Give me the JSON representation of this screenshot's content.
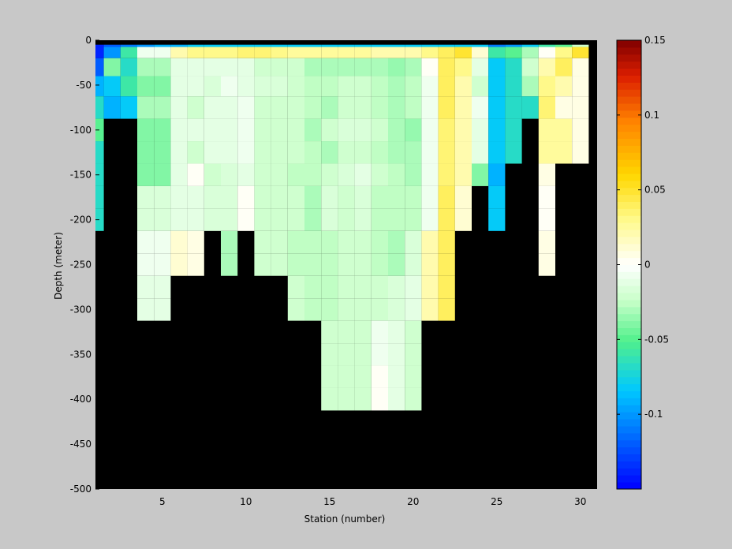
{
  "chart_data": {
    "type": "heatmap",
    "title": "",
    "xlabel": "Station (number)",
    "ylabel": "Depth (meter)",
    "xlim": [
      1,
      31
    ],
    "ylim": [
      -500,
      0
    ],
    "x_ticks": [
      5,
      10,
      15,
      20,
      25,
      30
    ],
    "y_ticks": [
      0,
      -50,
      -100,
      -150,
      -200,
      -250,
      -300,
      -350,
      -400,
      -450,
      -500
    ],
    "colorbar": {
      "colormap": "jet-like blue-cyan-green-white-yellow-red",
      "range": [
        -0.15,
        0.15
      ],
      "ticks": [
        0.15,
        0.1,
        0.05,
        0,
        -0.05,
        -0.1
      ],
      "tick_labels": [
        "0.15",
        "0.1",
        "0.05",
        "0",
        "-0.05",
        "-0.1"
      ],
      "low_color": "#0000ff",
      "high_color": "#800000"
    },
    "no_data_color": "#000000",
    "stations": [
      1,
      2,
      3,
      4,
      5,
      6,
      7,
      8,
      9,
      10,
      11,
      12,
      13,
      14,
      15,
      16,
      17,
      18,
      19,
      20,
      21,
      22,
      23,
      24,
      25,
      26,
      27,
      28,
      29,
      30
    ],
    "depth_bins": [
      -5,
      -10,
      -30,
      -50,
      -75,
      -100,
      -125,
      -150,
      -175,
      -200,
      -225,
      -250,
      -275,
      -300,
      -325,
      -350,
      -375,
      -400
    ],
    "values_by_depth": [
      [
        -0.14,
        -0.12,
        -0.11,
        -0.1,
        -0.09,
        -0.09,
        -0.08,
        -0.08,
        -0.08,
        -0.08,
        -0.08,
        -0.08,
        -0.08,
        -0.08,
        -0.08,
        -0.08,
        -0.08,
        -0.08,
        -0.08,
        -0.08,
        -0.08,
        -0.08,
        -0.08,
        -0.08,
        -0.11,
        -0.1,
        -0.08,
        -0.06,
        -0.05,
        -0.02
      ],
      [
        -0.14,
        -0.1,
        -0.06,
        -0.005,
        -0.005,
        0.02,
        0.03,
        0.03,
        0.03,
        0.035,
        0.035,
        0.03,
        0.025,
        0.025,
        0.025,
        0.025,
        0.025,
        0.02,
        0.02,
        0.02,
        0.03,
        0.04,
        0.05,
        0.01,
        -0.06,
        -0.05,
        -0.03,
        0.0,
        0.03,
        0.05
      ],
      [
        -0.12,
        -0.04,
        -0.07,
        -0.03,
        -0.03,
        -0.01,
        -0.01,
        -0.01,
        -0.01,
        -0.01,
        -0.02,
        -0.02,
        -0.02,
        -0.03,
        -0.03,
        -0.03,
        -0.03,
        -0.03,
        -0.035,
        -0.03,
        0.0,
        0.04,
        0.03,
        -0.01,
        -0.08,
        -0.07,
        -0.02,
        0.02,
        0.04,
        0.005
      ],
      [
        -0.09,
        -0.08,
        -0.06,
        -0.04,
        -0.04,
        -0.01,
        -0.01,
        -0.015,
        -0.005,
        -0.01,
        -0.015,
        -0.015,
        -0.02,
        -0.025,
        -0.025,
        -0.02,
        -0.02,
        -0.025,
        -0.03,
        -0.025,
        -0.005,
        0.04,
        0.02,
        -0.02,
        -0.08,
        -0.07,
        -0.03,
        0.03,
        0.02,
        0.005
      ],
      [
        -0.07,
        -0.09,
        -0.08,
        -0.03,
        -0.03,
        -0.01,
        -0.02,
        -0.01,
        -0.01,
        -0.005,
        -0.02,
        -0.02,
        -0.02,
        -0.025,
        -0.03,
        -0.02,
        -0.02,
        -0.025,
        -0.03,
        -0.025,
        -0.005,
        0.04,
        0.02,
        -0.005,
        -0.08,
        -0.07,
        -0.07,
        0.035,
        0.005,
        0.005
      ],
      [
        -0.05,
        null,
        null,
        -0.04,
        -0.04,
        -0.01,
        -0.01,
        -0.01,
        -0.01,
        -0.005,
        -0.02,
        -0.02,
        -0.02,
        -0.03,
        -0.02,
        -0.015,
        -0.015,
        -0.02,
        -0.03,
        -0.035,
        -0.005,
        0.035,
        0.02,
        -0.01,
        -0.08,
        -0.07,
        null,
        0.025,
        0.025,
        0.005
      ],
      [
        -0.07,
        null,
        null,
        -0.04,
        -0.04,
        -0.01,
        -0.02,
        -0.01,
        -0.01,
        -0.005,
        -0.02,
        -0.02,
        -0.02,
        -0.025,
        -0.03,
        -0.02,
        -0.02,
        -0.025,
        -0.03,
        -0.03,
        -0.005,
        0.035,
        0.02,
        -0.01,
        -0.08,
        -0.07,
        null,
        0.025,
        0.025,
        0.005
      ],
      [
        -0.07,
        null,
        null,
        -0.04,
        -0.04,
        -0.01,
        0.0,
        -0.02,
        -0.015,
        -0.01,
        -0.02,
        -0.02,
        -0.025,
        -0.025,
        -0.02,
        -0.015,
        -0.01,
        -0.02,
        -0.025,
        -0.03,
        -0.005,
        0.035,
        0.02,
        -0.04,
        -0.09,
        null,
        null,
        0.005,
        null,
        null
      ],
      [
        -0.07,
        null,
        null,
        -0.015,
        -0.015,
        -0.01,
        -0.01,
        -0.015,
        -0.015,
        0.0,
        -0.02,
        -0.02,
        -0.02,
        -0.03,
        -0.015,
        -0.02,
        -0.015,
        -0.025,
        -0.025,
        -0.025,
        -0.005,
        0.04,
        0.01,
        null,
        -0.08,
        null,
        null,
        0.0,
        null,
        null
      ],
      [
        -0.07,
        null,
        null,
        -0.015,
        -0.015,
        -0.01,
        -0.01,
        -0.015,
        -0.015,
        0.0,
        -0.02,
        -0.02,
        -0.02,
        -0.03,
        -0.015,
        -0.02,
        -0.015,
        -0.025,
        -0.025,
        -0.025,
        -0.005,
        0.04,
        0.01,
        null,
        -0.08,
        null,
        null,
        0.0,
        null,
        null
      ],
      [
        null,
        null,
        null,
        -0.005,
        -0.005,
        0.01,
        0.005,
        null,
        -0.03,
        null,
        -0.02,
        -0.02,
        -0.025,
        -0.025,
        -0.025,
        -0.02,
        -0.02,
        -0.025,
        -0.03,
        -0.015,
        0.02,
        0.04,
        null,
        null,
        null,
        null,
        null,
        0.005,
        null,
        null
      ],
      [
        null,
        null,
        null,
        -0.005,
        -0.005,
        0.01,
        0.005,
        null,
        -0.03,
        null,
        -0.02,
        -0.02,
        -0.025,
        -0.025,
        -0.025,
        -0.02,
        -0.02,
        -0.025,
        -0.03,
        -0.015,
        0.02,
        0.04,
        null,
        null,
        null,
        null,
        null,
        0.005,
        null,
        null
      ],
      [
        null,
        null,
        null,
        -0.01,
        -0.01,
        null,
        null,
        null,
        null,
        null,
        null,
        null,
        -0.02,
        -0.025,
        -0.025,
        -0.02,
        -0.02,
        -0.02,
        -0.015,
        -0.01,
        0.02,
        0.04,
        null,
        null,
        null,
        null,
        null,
        null,
        null,
        null
      ],
      [
        null,
        null,
        null,
        -0.01,
        -0.01,
        null,
        null,
        null,
        null,
        null,
        null,
        null,
        -0.02,
        -0.025,
        -0.025,
        -0.02,
        -0.02,
        -0.02,
        -0.015,
        -0.01,
        0.02,
        0.04,
        null,
        null,
        null,
        null,
        null,
        null,
        null,
        null
      ],
      [
        null,
        null,
        null,
        null,
        null,
        null,
        null,
        null,
        null,
        null,
        null,
        null,
        null,
        null,
        -0.02,
        -0.02,
        -0.02,
        -0.005,
        -0.01,
        -0.02,
        null,
        null,
        null,
        null,
        null,
        null,
        null,
        null,
        null,
        null
      ],
      [
        null,
        null,
        null,
        null,
        null,
        null,
        null,
        null,
        null,
        null,
        null,
        null,
        null,
        null,
        -0.02,
        -0.02,
        -0.02,
        -0.005,
        -0.01,
        -0.02,
        null,
        null,
        null,
        null,
        null,
        null,
        null,
        null,
        null,
        null
      ],
      [
        null,
        null,
        null,
        null,
        null,
        null,
        null,
        null,
        null,
        null,
        null,
        null,
        null,
        null,
        -0.02,
        -0.02,
        -0.02,
        0.0,
        -0.01,
        -0.02,
        null,
        null,
        null,
        null,
        null,
        null,
        null,
        null,
        null,
        null
      ],
      [
        null,
        null,
        null,
        null,
        null,
        null,
        null,
        null,
        null,
        null,
        null,
        null,
        null,
        null,
        -0.02,
        -0.02,
        -0.02,
        0.0,
        -0.01,
        -0.02,
        null,
        null,
        null,
        null,
        null,
        null,
        null,
        null,
        null,
        null
      ]
    ]
  }
}
